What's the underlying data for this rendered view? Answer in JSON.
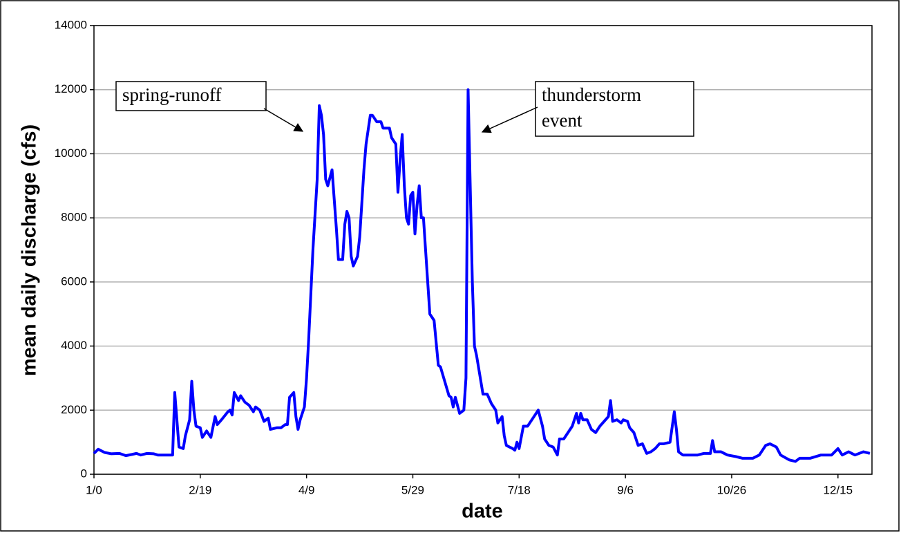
{
  "chart_data": {
    "type": "line",
    "x_label": "date",
    "y_label": "mean daily discharge (cfs)",
    "annotations": [
      {
        "lines": [
          "spring-runoff"
        ]
      },
      {
        "lines": [
          "thunderstorm",
          "event"
        ]
      }
    ],
    "color": "#0000ff",
    "grid": true,
    "xlim": [
      0,
      366
    ],
    "xticks": [
      {
        "value": 0,
        "label": "1/0"
      },
      {
        "value": 50,
        "label": "2/19"
      },
      {
        "value": 100,
        "label": "4/9"
      },
      {
        "value": 150,
        "label": "5/29"
      },
      {
        "value": 200,
        "label": "7/18"
      },
      {
        "value": 250,
        "label": "9/6"
      },
      {
        "value": 300,
        "label": "10/26"
      },
      {
        "value": 350,
        "label": "12/15"
      }
    ],
    "ylim": [
      0,
      14000
    ],
    "yticks": [
      0,
      2000,
      4000,
      6000,
      8000,
      10000,
      12000,
      14000
    ],
    "x": [
      0,
      2,
      5,
      8,
      12,
      15,
      18,
      20,
      22,
      25,
      28,
      30,
      35,
      37,
      38,
      40,
      42,
      43,
      45,
      46,
      47,
      48,
      50,
      51,
      53,
      55,
      57,
      58,
      60,
      63,
      64,
      65,
      66,
      68,
      69,
      71,
      73,
      75,
      76,
      78,
      80,
      82,
      83,
      86,
      88,
      90,
      91,
      92,
      94,
      95,
      96,
      97,
      99,
      100,
      101,
      103,
      105,
      106,
      107,
      108,
      109,
      110,
      112,
      113,
      114,
      115,
      117,
      118,
      119,
      120,
      121,
      122,
      124,
      125,
      127,
      128,
      130,
      131,
      133,
      135,
      136,
      139,
      140,
      142,
      143,
      144,
      145,
      146,
      147,
      148,
      149,
      150,
      151,
      152,
      153,
      154,
      155,
      156,
      157,
      158,
      160,
      162,
      163,
      165,
      167,
      168,
      169,
      170,
      172,
      174,
      175,
      176,
      178,
      179,
      180,
      182,
      183,
      185,
      187,
      189,
      190,
      192,
      193,
      194,
      197,
      198,
      199,
      200,
      202,
      204,
      205,
      207,
      209,
      211,
      212,
      214,
      216,
      218,
      219,
      221,
      223,
      225,
      227,
      228,
      229,
      230,
      232,
      234,
      236,
      238,
      240,
      242,
      243,
      244,
      246,
      248,
      249,
      251,
      252,
      254,
      256,
      258,
      260,
      262,
      264,
      266,
      268,
      271,
      273,
      274,
      275,
      277,
      280,
      284,
      287,
      290,
      291,
      292,
      295,
      298,
      302,
      305,
      310,
      313,
      316,
      318,
      321,
      323,
      327,
      330,
      332,
      337,
      342,
      347,
      350,
      352,
      355,
      358,
      362,
      365
    ],
    "values": [
      650,
      780,
      680,
      640,
      650,
      580,
      620,
      650,
      600,
      650,
      640,
      600,
      600,
      600,
      2550,
      850,
      800,
      1200,
      1700,
      2900,
      2000,
      1500,
      1450,
      1150,
      1350,
      1150,
      1800,
      1550,
      1700,
      1950,
      2000,
      1850,
      2550,
      2300,
      2450,
      2250,
      2150,
      1950,
      2100,
      2000,
      1650,
      1750,
      1400,
      1450,
      1450,
      1550,
      1550,
      2400,
      2550,
      1800,
      1400,
      1700,
      2100,
      3000,
      4200,
      7000,
      9200,
      11500,
      11200,
      10600,
      9200,
      9000,
      9500,
      8600,
      7700,
      6700,
      6700,
      7800,
      8200,
      8000,
      6800,
      6500,
      6800,
      7400,
      9500,
      10300,
      11200,
      11200,
      11000,
      11000,
      10800,
      10800,
      10500,
      10300,
      8800,
      9800,
      10600,
      9000,
      8000,
      7800,
      8700,
      8800,
      7500,
      8400,
      9000,
      8000,
      8000,
      7000,
      6000,
      5000,
      4800,
      3400,
      3350,
      2900,
      2450,
      2400,
      2100,
      2400,
      1900,
      2000,
      3000,
      12000,
      6000,
      4000,
      3700,
      2900,
      2500,
      2500,
      2200,
      2000,
      1600,
      1800,
      1200,
      900,
      800,
      750,
      1000,
      800,
      1500,
      1500,
      1600,
      1800,
      2000,
      1500,
      1100,
      900,
      850,
      600,
      1100,
      1100,
      1300,
      1500,
      1900,
      1600,
      1900,
      1700,
      1700,
      1400,
      1300,
      1500,
      1650,
      1800,
      2300,
      1650,
      1700,
      1600,
      1700,
      1650,
      1450,
      1300,
      900,
      950,
      650,
      700,
      800,
      950,
      950,
      1000,
      1950,
      1400,
      700,
      600,
      600,
      600,
      650,
      650,
      1050,
      700,
      700,
      600,
      550,
      500,
      500,
      600,
      900,
      950,
      850,
      600,
      450,
      400,
      500,
      500,
      600,
      600,
      800,
      600,
      700,
      600,
      700,
      650
    ]
  }
}
